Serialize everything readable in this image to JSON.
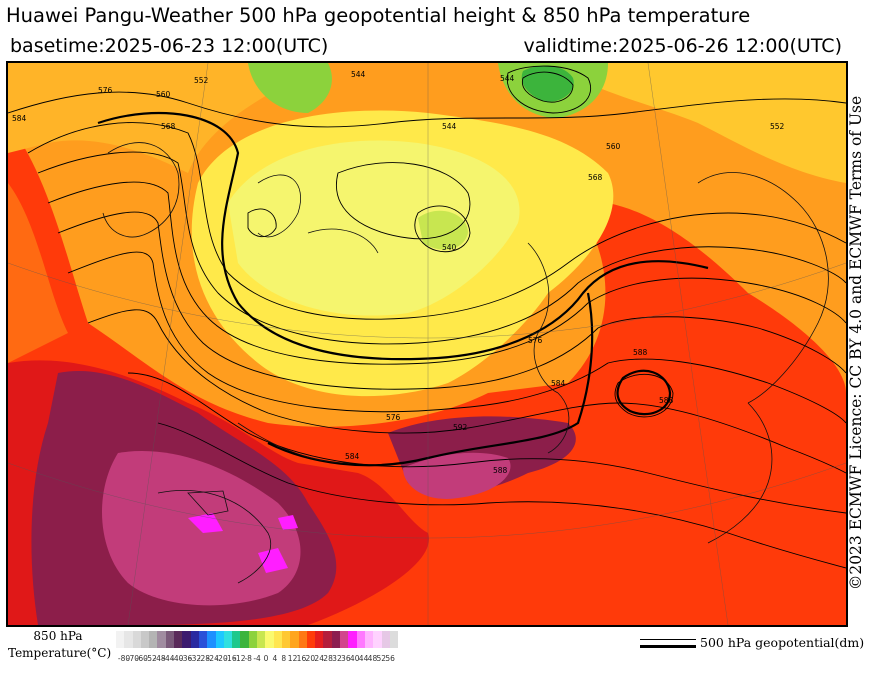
{
  "header": {
    "title": "Huawei Pangu-Weather 500 hPa geopotential height & 850 hPa temperature",
    "basetime": "basetime:2025-06-23 12:00(UTC)",
    "validtime": "validtime:2025-06-26 12:00(UTC)"
  },
  "license_text": "©2023 ECMWF Licence: CC BY 4.0 and ECMWF Terms of Use",
  "colorbar": {
    "label_line1": "850 hPa",
    "label_line2": "Temperature(°C)",
    "ticks": [
      "-80",
      "-70",
      "-60",
      "-52",
      "-48",
      "-44",
      "-40",
      "-36",
      "-32",
      "-28",
      "-24",
      "-20",
      "-16",
      "-12",
      "-8",
      "-4",
      "0",
      "4",
      "8",
      "12",
      "16",
      "20",
      "24",
      "28",
      "32",
      "36",
      "40",
      "44",
      "48",
      "52",
      "56"
    ],
    "colors": [
      "#f2f2f2",
      "#e6e6e6",
      "#d9d9d9",
      "#c8c8c8",
      "#b4b4b4",
      "#a08ca0",
      "#7a5a7a",
      "#5a2a5a",
      "#3c1a6e",
      "#2a2aa0",
      "#2a50d8",
      "#1e90ff",
      "#1ec8ff",
      "#30e0e0",
      "#1ec88c",
      "#3cb43c",
      "#8cd23c",
      "#c8e650",
      "#fafa6e",
      "#ffe650",
      "#ffc832",
      "#ffa51e",
      "#ff7814",
      "#ff3c0a",
      "#e61e1e",
      "#b41e3c",
      "#8c1e50",
      "#d2468c",
      "#ff1eff",
      "#ff78ff",
      "#ffb4ff",
      "#ffd2ff",
      "#e6c8e6",
      "#dcdcdc"
    ]
  },
  "legend": {
    "geopotential": "500 hPa geopotential(dm)"
  },
  "map": {
    "contour_labels": [
      "552",
      "560",
      "568",
      "576",
      "584",
      "544",
      "544",
      "540",
      "560",
      "568",
      "544",
      "552",
      "576",
      "584",
      "588",
      "588",
      "592",
      "576",
      "584",
      "588"
    ]
  }
}
